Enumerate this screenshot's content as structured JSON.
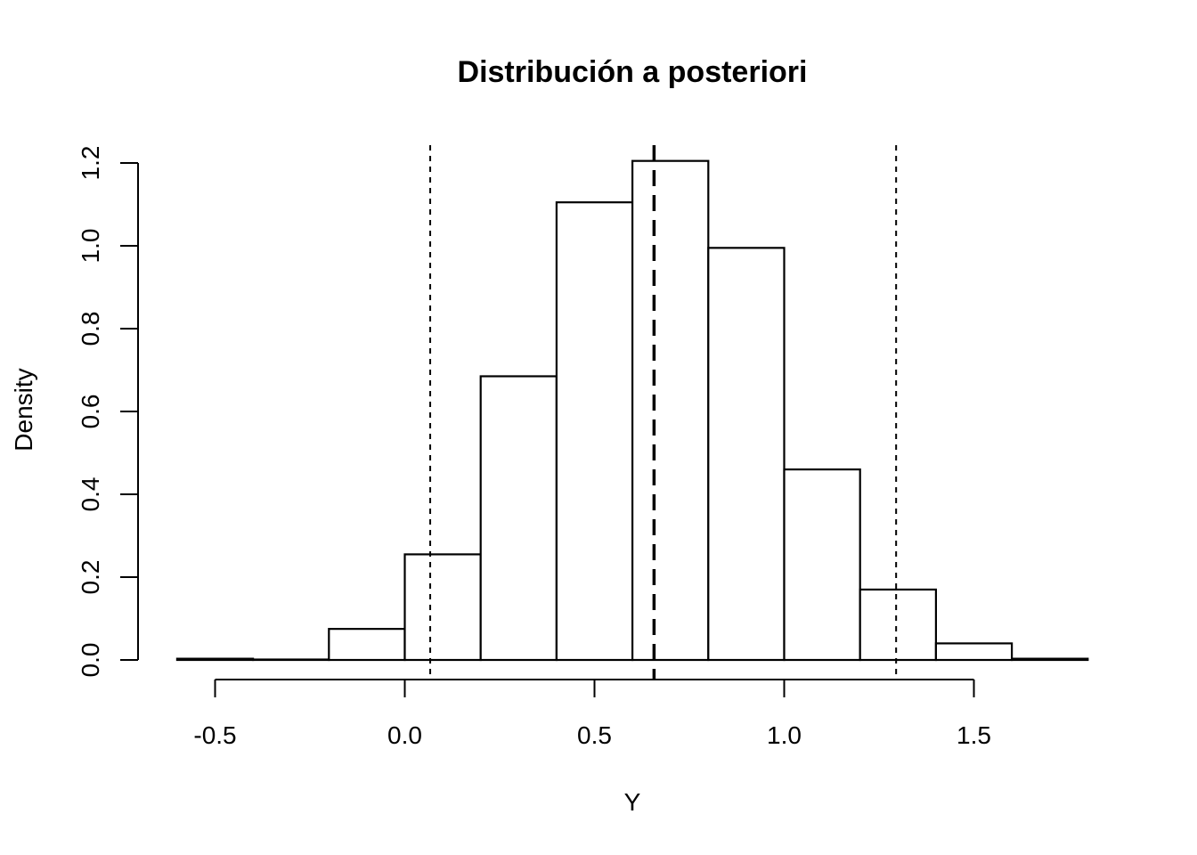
{
  "chart_data": {
    "type": "bar",
    "title": "Distribución a posteriori",
    "xlabel": "Y",
    "ylabel": "Density",
    "xlim": [
      -0.6,
      1.8
    ],
    "ylim": [
      0,
      1.2
    ],
    "x_ticks": [
      "-0.5",
      "0.0",
      "0.5",
      "1.0",
      "1.5"
    ],
    "y_ticks": [
      "0.0",
      "0.2",
      "0.4",
      "0.6",
      "0.8",
      "1.0",
      "1.2"
    ],
    "bins": [
      {
        "from": -0.6,
        "to": -0.4,
        "density": 0.003
      },
      {
        "from": -0.4,
        "to": -0.2,
        "density": 0.0
      },
      {
        "from": -0.2,
        "to": 0.0,
        "density": 0.075
      },
      {
        "from": 0.0,
        "to": 0.2,
        "density": 0.255
      },
      {
        "from": 0.2,
        "to": 0.4,
        "density": 0.685
      },
      {
        "from": 0.4,
        "to": 0.6,
        "density": 1.105
      },
      {
        "from": 0.6,
        "to": 0.8,
        "density": 1.205
      },
      {
        "from": 0.8,
        "to": 1.0,
        "density": 0.995
      },
      {
        "from": 1.0,
        "to": 1.2,
        "density": 0.46
      },
      {
        "from": 1.2,
        "to": 1.4,
        "density": 0.17
      },
      {
        "from": 1.4,
        "to": 1.6,
        "density": 0.04
      },
      {
        "from": 1.6,
        "to": 1.8,
        "density": 0.003
      }
    ],
    "vlines": [
      {
        "name": "lower-bound",
        "x": 0.067,
        "style": "dotted"
      },
      {
        "name": "mean",
        "x": 0.657,
        "style": "dashed"
      },
      {
        "name": "upper-bound",
        "x": 1.295,
        "style": "dotted"
      }
    ],
    "grid": false,
    "colors": {
      "bar_fill": "#ffffff",
      "stroke": "#000000"
    }
  }
}
